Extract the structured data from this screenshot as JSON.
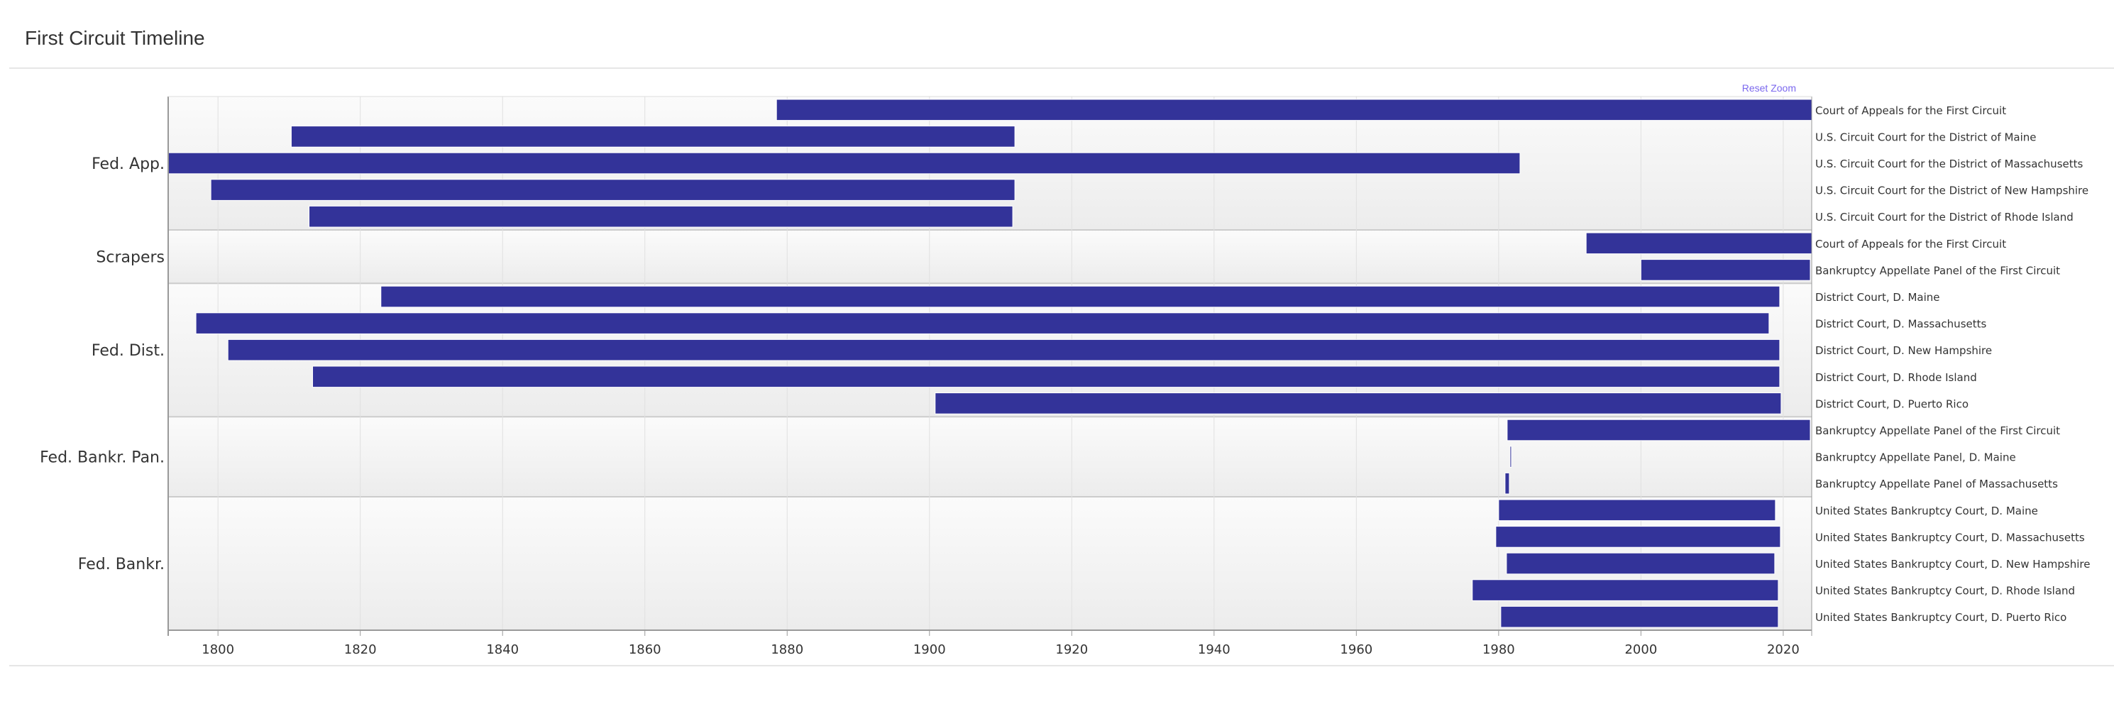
{
  "page": {
    "title": "First Circuit Timeline"
  },
  "controls": {
    "reset_zoom": "Reset Zoom"
  },
  "colors": {
    "bar": "#333399",
    "group_bg_top": "#fbfbfb",
    "group_bg_bottom": "#ececec",
    "gridline": "#e0e0e0",
    "axis_label": "#333333",
    "row_label": "#333333",
    "group_label": "#333333",
    "reset_zoom": "#7b68ee"
  },
  "chart_data": {
    "type": "bar",
    "orientation": "horizontal-timeline",
    "x_axis": {
      "min": 1793,
      "max": 2024,
      "ticks": [
        1800,
        1820,
        1840,
        1860,
        1880,
        1900,
        1920,
        1940,
        1960,
        1980,
        2000,
        2020
      ]
    },
    "grid": true,
    "groups": [
      {
        "name": "Fed. App.",
        "rows": [
          {
            "label": "Court of Appeals for the First Circuit",
            "start": 1878.5,
            "end": 2024
          },
          {
            "label": "U.S. Circuit Court for the District of Maine",
            "start": 1810.3,
            "end": 1912
          },
          {
            "label": "U.S. Circuit Court for the District of Massachusetts",
            "start": 1793,
            "end": 1983
          },
          {
            "label": "U.S. Circuit Court for the District of New Hampshire",
            "start": 1799,
            "end": 1912
          },
          {
            "label": "U.S. Circuit Court for the District of Rhode Island",
            "start": 1812.8,
            "end": 1911.7
          }
        ]
      },
      {
        "name": "Scrapers",
        "rows": [
          {
            "label": "Court of Appeals for the First Circuit",
            "start": 1992.3,
            "end": 2024
          },
          {
            "label": "Bankruptcy Appellate Panel of the First Circuit",
            "start": 2000,
            "end": 2023.8
          }
        ]
      },
      {
        "name": "Fed. Dist.",
        "rows": [
          {
            "label": "District Court, D. Maine",
            "start": 1822.9,
            "end": 2019.5
          },
          {
            "label": "District Court, D. Massachusetts",
            "start": 1796.9,
            "end": 2018
          },
          {
            "label": "District Court, D. New Hampshire",
            "start": 1801.4,
            "end": 2019.5
          },
          {
            "label": "District Court, D. Rhode Island",
            "start": 1813.3,
            "end": 2019.5
          },
          {
            "label": "District Court, D. Puerto Rico",
            "start": 1900.8,
            "end": 2019.7
          }
        ]
      },
      {
        "name": "Fed. Bankr. Pan.",
        "rows": [
          {
            "label": "Bankruptcy Appellate Panel of the First Circuit",
            "start": 1981.2,
            "end": 2023.8
          },
          {
            "label": "Bankruptcy Appellate Panel, D. Maine",
            "start": 1981.6,
            "end": 1981.8
          },
          {
            "label": "Bankruptcy Appellate Panel of Massachusetts",
            "start": 1980.9,
            "end": 1981.5
          }
        ]
      },
      {
        "name": "Fed. Bankr.",
        "rows": [
          {
            "label": "United States Bankruptcy Court, D. Maine",
            "start": 1980,
            "end": 2018.9
          },
          {
            "label": "United States Bankruptcy Court, D. Massachusetts",
            "start": 1979.6,
            "end": 2019.6
          },
          {
            "label": "United States Bankruptcy Court, D. New Hampshire",
            "start": 1981.1,
            "end": 2018.8
          },
          {
            "label": "United States Bankruptcy Court, D. Rhode Island",
            "start": 1976.3,
            "end": 2019.3
          },
          {
            "label": "United States Bankruptcy Court, D. Puerto Rico",
            "start": 1980.3,
            "end": 2019.3
          }
        ]
      }
    ]
  }
}
